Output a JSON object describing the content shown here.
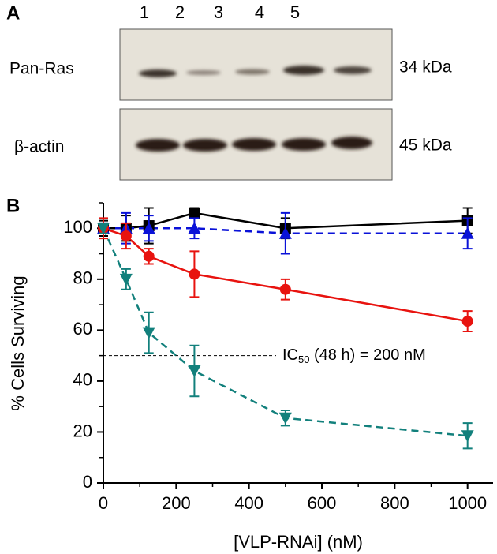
{
  "panel_a": {
    "label": "A",
    "lanes": [
      "1",
      "2",
      "3",
      "4",
      "5"
    ],
    "rows": [
      {
        "label": "Pan-Ras",
        "size": "34 kDa"
      },
      {
        "label": "β-actin",
        "size": "45 kDa"
      }
    ]
  },
  "chart_data": {
    "type": "line",
    "panel_label": "B",
    "x_label": "[VLP-RNAi] (nM)",
    "y_label": "% Cells Surviving",
    "x": [
      0,
      62.5,
      125,
      250,
      500,
      1000
    ],
    "series": [
      {
        "color": "#000000",
        "marker": "square",
        "dashed": false,
        "values": [
          100,
          100,
          101,
          106,
          100,
          103
        ],
        "errors": [
          3,
          5,
          7,
          2,
          4,
          5
        ]
      },
      {
        "color": "#0a12d8",
        "marker": "triangle",
        "dashed": true,
        "values": [
          100,
          100,
          100,
          100,
          98,
          98
        ],
        "errors": [
          2,
          6,
          5,
          4,
          8,
          6
        ]
      },
      {
        "color": "#e8130f",
        "marker": "circle",
        "dashed": false,
        "values": [
          100,
          97,
          89,
          82,
          76,
          63.5
        ],
        "errors": [
          4,
          5,
          3,
          9,
          4,
          4
        ]
      },
      {
        "color": "#12807c",
        "marker": "triangle-down",
        "dashed": true,
        "values": [
          100,
          80,
          59,
          44,
          25.5,
          18.5
        ],
        "errors": [
          2,
          4,
          8,
          10,
          3,
          5
        ]
      }
    ],
    "annotation": {
      "y": 50,
      "text": "IC",
      "sub": "50",
      "rest": " (48 h) = 200 nM"
    },
    "xlim": [
      0,
      1070
    ],
    "ylim": [
      0,
      110
    ],
    "xticks": [
      0,
      200,
      400,
      600,
      800,
      1000
    ],
    "yticks": [
      0,
      20,
      40,
      60,
      80,
      100
    ],
    "xminorticks": [
      100,
      300,
      500,
      700,
      900
    ],
    "yminorticks": [
      10,
      30,
      50,
      70,
      90,
      110
    ],
    "grid": false
  }
}
